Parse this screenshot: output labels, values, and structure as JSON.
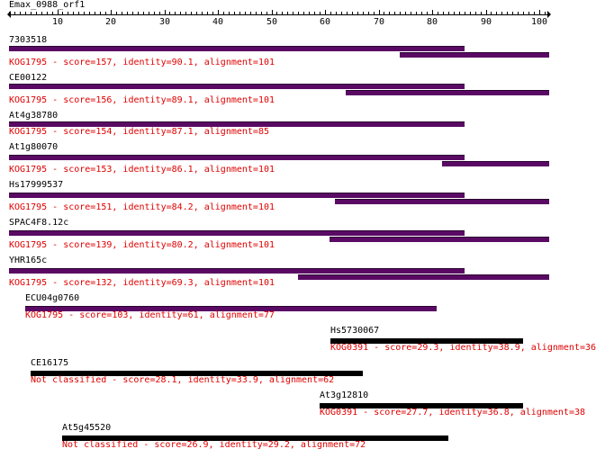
{
  "query": {
    "title": "Emax_0988_orf1"
  },
  "axis": {
    "ticks": [
      "10",
      "20",
      "30",
      "40",
      "50",
      "60",
      "70",
      "80",
      "90",
      "100"
    ]
  },
  "colors": {
    "kog_bar": "#5a0a64",
    "other_bar": "#000000",
    "info_text": "#e00000",
    "label_text": "#000000"
  },
  "hits": [
    {
      "name": "7303518",
      "info": "KOG1795 - score=157, identity=90.1, alignment=101"
    },
    {
      "name": "CE00122",
      "info": "KOG1795 - score=156, identity=89.1, alignment=101"
    },
    {
      "name": "At4g38780",
      "info": "KOG1795 - score=154, identity=87.1, alignment=85"
    },
    {
      "name": "At1g80070",
      "info": "KOG1795 - score=153, identity=86.1, alignment=101"
    },
    {
      "name": "Hs17999537",
      "info": "KOG1795 - score=151, identity=84.2, alignment=101"
    },
    {
      "name": "SPAC4F8.12c",
      "info": "KOG1795 - score=139, identity=80.2, alignment=101"
    },
    {
      "name": "YHR165c",
      "info": "KOG1795 - score=132, identity=69.3, alignment=101"
    },
    {
      "name": "ECU04g0760",
      "info": "KOG1795 - score=103, identity=61, alignment=77"
    },
    {
      "name": "Hs5730067",
      "info": "KOG0391 - score=29.3, identity=38.9, alignment=36"
    },
    {
      "name": "CE16175",
      "info": "Not classified - score=28.1, identity=33.9, alignment=62"
    },
    {
      "name": "At3g12810",
      "info": "KOG0391 - score=27.7, identity=36.8, alignment=38"
    },
    {
      "name": "At5g45520",
      "info": "Not classified - score=26.9, identity=29.2, alignment=72"
    }
  ]
}
